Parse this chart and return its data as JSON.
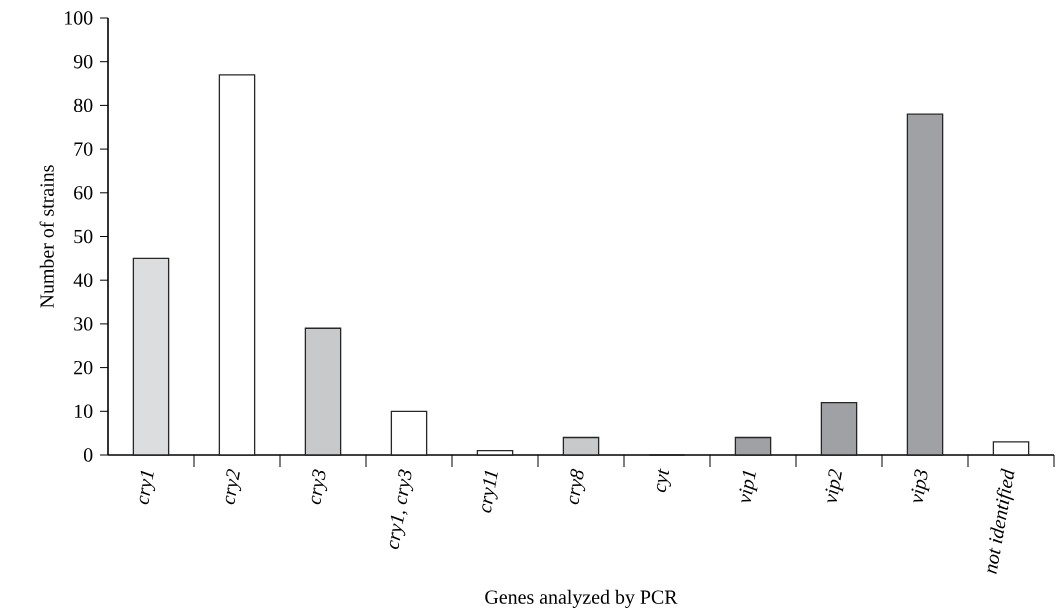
{
  "chart_data": {
    "type": "bar",
    "xlabel": "Genes analyzed by PCR",
    "ylabel": "Number of strains",
    "categories": [
      "cry1",
      "cry2",
      "cry3",
      "cry1, cry3",
      "cry11",
      "cry8",
      "cyt",
      "vip1",
      "vip2",
      "vip3",
      "not identified"
    ],
    "values": [
      45,
      87,
      29,
      10,
      1,
      4,
      0,
      4,
      12,
      78,
      3
    ],
    "colors": [
      "#dcdddf",
      "#ffffff",
      "#c8c9cb",
      "#ffffff",
      "#ffffff",
      "#c8c9cb",
      "#ffffff",
      "#a0a1a5",
      "#a0a1a5",
      "#a0a1a5",
      "#ffffff"
    ],
    "ylim": [
      0,
      100
    ],
    "yticks": [
      0,
      10,
      20,
      30,
      40,
      50,
      60,
      70,
      80,
      90,
      100
    ],
    "grid": false
  }
}
